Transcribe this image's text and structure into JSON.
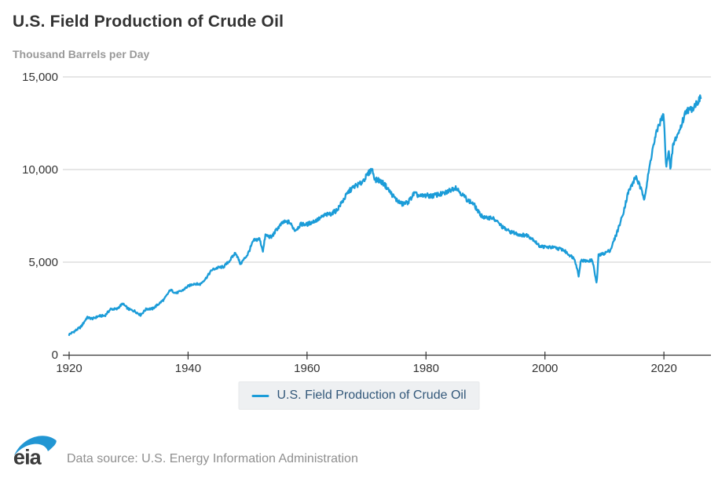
{
  "footer": {
    "logo_text": "eia",
    "source_text": "Data source: U.S. Energy Information Administration"
  },
  "chart_data": {
    "type": "line",
    "title": "U.S. Field Production of Crude Oil",
    "ylabel": "Thousand Barrels per Day",
    "xlabel": "",
    "xlim": [
      1920,
      2026.5
    ],
    "ylim": [
      0,
      15000
    ],
    "x_ticks": [
      1920,
      1940,
      1960,
      1980,
      2000,
      2020
    ],
    "y_ticks": [
      0,
      5000,
      10000,
      15000
    ],
    "grid": "horizontal",
    "legend_position": "bottom",
    "frequency": "monthly",
    "noise_pct": 1.5,
    "colors": {
      "line": "#1b9cd8",
      "grid": "#cccccc",
      "axis": "#333333",
      "tick_label": "#333333",
      "legend_bg": "#eef0f2",
      "legend_text": "#33587a"
    },
    "series": [
      {
        "name": "U.S. Field Production of Crude Oil",
        "color": "#1b9cd8",
        "points": [
          [
            1920,
            1100
          ],
          [
            1921,
            1290
          ],
          [
            1922,
            1510
          ],
          [
            1923,
            2010
          ],
          [
            1924,
            1950
          ],
          [
            1925,
            2090
          ],
          [
            1926,
            2110
          ],
          [
            1927,
            2470
          ],
          [
            1928,
            2460
          ],
          [
            1929,
            2760
          ],
          [
            1930,
            2460
          ],
          [
            1931,
            2360
          ],
          [
            1932,
            2150
          ],
          [
            1933,
            2480
          ],
          [
            1934,
            2480
          ],
          [
            1935,
            2730
          ],
          [
            1936,
            3000
          ],
          [
            1937,
            3500
          ],
          [
            1938,
            3330
          ],
          [
            1939,
            3460
          ],
          [
            1940,
            3700
          ],
          [
            1941,
            3840
          ],
          [
            1942,
            3800
          ],
          [
            1943,
            4130
          ],
          [
            1944,
            4580
          ],
          [
            1945,
            4700
          ],
          [
            1946,
            4750
          ],
          [
            1947,
            5090
          ],
          [
            1948,
            5520
          ],
          [
            1948.8,
            4900
          ],
          [
            1949.5,
            5200
          ],
          [
            1950,
            5410
          ],
          [
            1951,
            6160
          ],
          [
            1952,
            6260
          ],
          [
            1952.6,
            5600
          ],
          [
            1953,
            6460
          ],
          [
            1954,
            6340
          ],
          [
            1955,
            6810
          ],
          [
            1956,
            7150
          ],
          [
            1957,
            7170
          ],
          [
            1958,
            6710
          ],
          [
            1959,
            7050
          ],
          [
            1960,
            7040
          ],
          [
            1961,
            7180
          ],
          [
            1962,
            7330
          ],
          [
            1963,
            7540
          ],
          [
            1964,
            7610
          ],
          [
            1965,
            7800
          ],
          [
            1966,
            8300
          ],
          [
            1967,
            8810
          ],
          [
            1968,
            9100
          ],
          [
            1969,
            9240
          ],
          [
            1970,
            9640
          ],
          [
            1970.9,
            10040
          ],
          [
            1971.5,
            9420
          ],
          [
            1972,
            9440
          ],
          [
            1973,
            9210
          ],
          [
            1974,
            8770
          ],
          [
            1975,
            8370
          ],
          [
            1976,
            8130
          ],
          [
            1977,
            8240
          ],
          [
            1978,
            8710
          ],
          [
            1979,
            8550
          ],
          [
            1980,
            8600
          ],
          [
            1981,
            8570
          ],
          [
            1982,
            8650
          ],
          [
            1983,
            8690
          ],
          [
            1984,
            8880
          ],
          [
            1985,
            9050
          ],
          [
            1986,
            8680
          ],
          [
            1987,
            8350
          ],
          [
            1988,
            8140
          ],
          [
            1989,
            7610
          ],
          [
            1990,
            7360
          ],
          [
            1991,
            7420
          ],
          [
            1992,
            7170
          ],
          [
            1993,
            6850
          ],
          [
            1994,
            6660
          ],
          [
            1995,
            6560
          ],
          [
            1996,
            6470
          ],
          [
            1997,
            6450
          ],
          [
            1998,
            6250
          ],
          [
            1999,
            5880
          ],
          [
            2000,
            5820
          ],
          [
            2001,
            5800
          ],
          [
            2002,
            5750
          ],
          [
            2003,
            5680
          ],
          [
            2004,
            5420
          ],
          [
            2005,
            5180
          ],
          [
            2005.7,
            4230
          ],
          [
            2006,
            5090
          ],
          [
            2007,
            5060
          ],
          [
            2008,
            5100
          ],
          [
            2008.7,
            3800
          ],
          [
            2009,
            5350
          ],
          [
            2010,
            5480
          ],
          [
            2011,
            5650
          ],
          [
            2012,
            6500
          ],
          [
            2013,
            7470
          ],
          [
            2014,
            8760
          ],
          [
            2015.3,
            9630
          ],
          [
            2016.7,
            8470
          ],
          [
            2017,
            8950
          ],
          [
            2018,
            10960
          ],
          [
            2019,
            12290
          ],
          [
            2019.95,
            12970
          ],
          [
            2020.4,
            10000
          ],
          [
            2020.8,
            11200
          ],
          [
            2021.1,
            9880
          ],
          [
            2021.5,
            11250
          ],
          [
            2022,
            11700
          ],
          [
            2022.5,
            12000
          ],
          [
            2023,
            12460
          ],
          [
            2023.8,
            13250
          ],
          [
            2024.3,
            13180
          ],
          [
            2025,
            13400
          ],
          [
            2025.5,
            13600
          ],
          [
            2026.2,
            13850
          ]
        ]
      }
    ]
  }
}
